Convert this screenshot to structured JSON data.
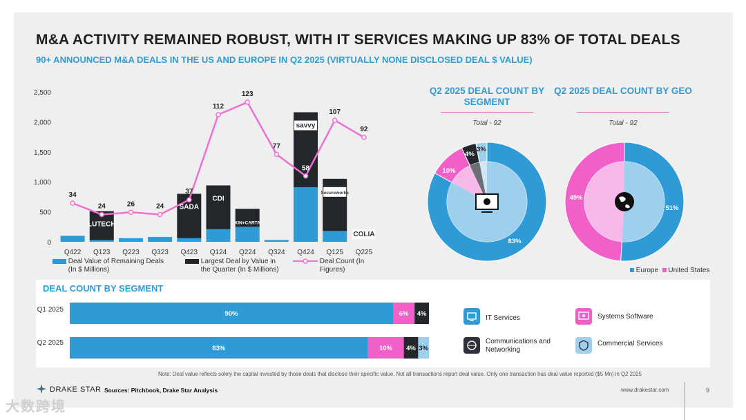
{
  "title": "M&A ACTIVITY REMAINED ROBUST, WITH IT SERVICES MAKING UP 83% OF TOTAL DEALS",
  "subtitle": "90+ ANNOUNCED M&A DEALS IN THE US AND EUROPE IN Q2 2025 (VIRTUALLY NONE DISCLOSED DEAL $ VALUE)",
  "colors": {
    "blue": "#2e9ad6",
    "dark": "#23262b",
    "pink": "#f060c8",
    "light_blue": "#9ed0ee",
    "line_pink": "#ee6fd2"
  },
  "chart_data": [
    {
      "type": "bar",
      "categories": [
        "Q422",
        "Q123",
        "Q223",
        "Q323",
        "Q423",
        "Q124",
        "Q224",
        "Q324",
        "Q424",
        "Q125",
        "Q225"
      ],
      "ylim": [
        0,
        2500
      ],
      "yticks": [
        "0",
        "500",
        "1,000",
        "1,500",
        "2,000",
        "2,500"
      ],
      "series": [
        {
          "name": "Deal Value of Remaining Deals (In $ Millions)",
          "values": [
            100,
            30,
            60,
            80,
            60,
            210,
            250,
            30,
            910,
            180,
            0
          ]
        },
        {
          "name": "Largest Deal by Value in the Quarter (In $ Millions)",
          "values": [
            0,
            480,
            0,
            0,
            740,
            730,
            300,
            0,
            1250,
            870,
            0
          ]
        },
        {
          "name": "Deal Count (In Figures)",
          "type": "line",
          "values": [
            34,
            24,
            26,
            24,
            37,
            112,
            123,
            77,
            58,
            107,
            92
          ],
          "labels": [
            "34",
            "24",
            "26",
            "24",
            "37",
            "112",
            "123",
            "77",
            "58",
            "107",
            "92"
          ]
        }
      ],
      "deal_logos": {
        "Q123": "LUTECH",
        "Q423": "SADA",
        "Q124": "CDI",
        "Q224": "KIN+CARTA",
        "Q424": "savvy",
        "Q125": "Secureworks",
        "Q225": "COLIA"
      }
    },
    {
      "type": "pie",
      "title": "Q2 2025 DEAL COUNT BY SEGMENT",
      "total_label": "Total - 92",
      "slices": [
        {
          "name": "IT Services",
          "value": 83,
          "label": "83%"
        },
        {
          "name": "Systems Software",
          "value": 10,
          "label": "10%"
        },
        {
          "name": "Communications and Networking",
          "value": 4,
          "label": "4%"
        },
        {
          "name": "Commercial Services",
          "value": 3,
          "label": "3%"
        }
      ]
    },
    {
      "type": "pie",
      "title": "Q2 2025 DEAL COUNT BY GEO",
      "total_label": "Total - 92",
      "slices": [
        {
          "name": "Europe",
          "value": 51,
          "label": "51%"
        },
        {
          "name": "United States",
          "value": 49,
          "label": "49%"
        }
      ]
    },
    {
      "type": "bar",
      "orientation": "horizontal-stacked",
      "title": "DEAL COUNT BY SEGMENT",
      "categories": [
        "Q1\n2025",
        "Q2\n2025"
      ],
      "series": [
        {
          "name": "IT Services",
          "values": [
            90,
            83
          ],
          "labels": [
            "90%",
            "83%"
          ]
        },
        {
          "name": "Systems Software",
          "values": [
            6,
            10
          ],
          "labels": [
            "6%",
            "10%"
          ]
        },
        {
          "name": "Communications and Networking",
          "values": [
            4,
            4
          ],
          "labels": [
            "4%",
            "4%"
          ]
        },
        {
          "name": "Commercial Services",
          "values": [
            0,
            3
          ],
          "labels": [
            "",
            "3%"
          ]
        }
      ]
    }
  ],
  "legend": {
    "remaining": "Deal Value of Remaining Deals (In $ Millions)",
    "largest": "Largest Deal by Value in the Quarter (In $ Millions)",
    "count": "Deal Count (In Figures)"
  },
  "pies": {
    "seg_title": "Q2 2025 DEAL COUNT BY SEGMENT",
    "geo_title": "Q2 2025 DEAL COUNT BY GEO",
    "total": "Total - 92",
    "europe": "Europe",
    "us": "United States"
  },
  "bottom": {
    "title": "DEAL COUNT BY SEGMENT",
    "row1": "Q1 2025",
    "row2": "Q2 2025",
    "legend": {
      "it": "IT Services",
      "sys": "Systems Software",
      "comm": "Communications and Networking",
      "commercial": "Commercial Services"
    }
  },
  "footer": {
    "note": "Note: Deal value reflects solely the capital invested by those deals that disclose their specific value. Not all transactions report deal value. Only one transaction has deal value reported ($5 Mn) in Q2 2025",
    "sources": "Sources: Pitchbook, Drake Star Analysis",
    "brand": "DRAKE STAR",
    "url": "www.drakestar.com",
    "page": "9",
    "watermark": "大数跨境"
  }
}
